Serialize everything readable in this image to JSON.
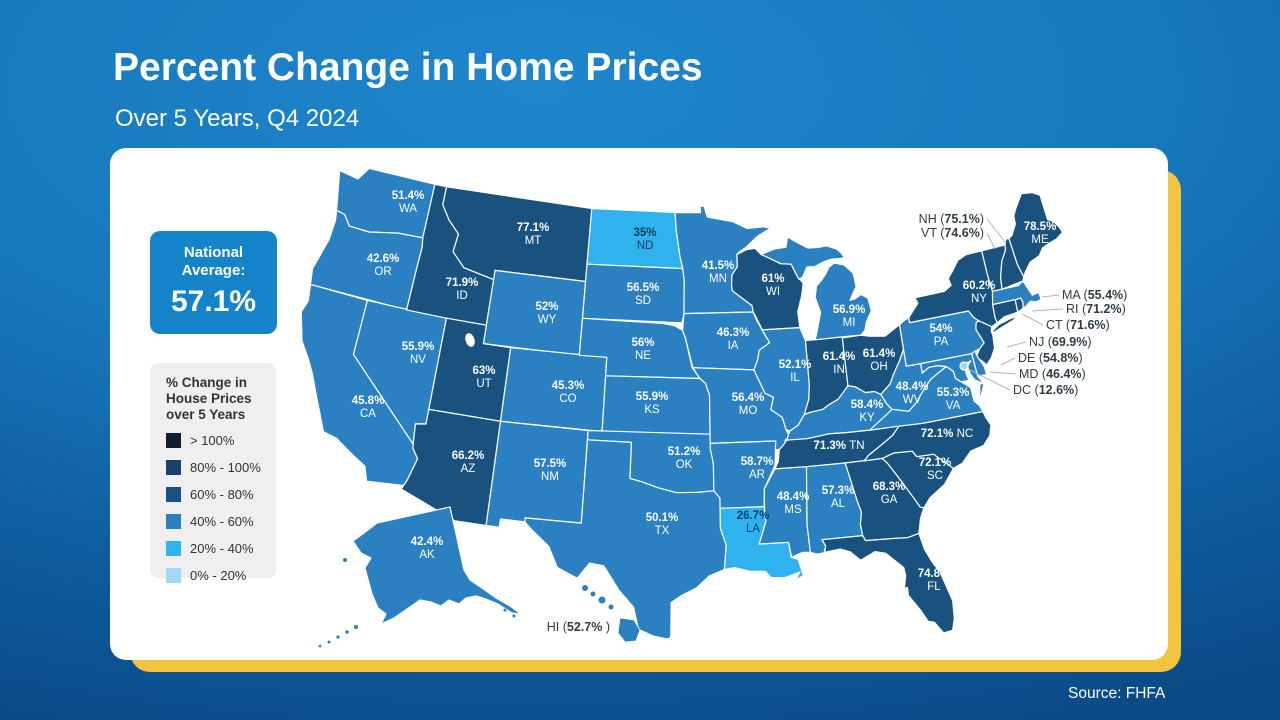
{
  "slide": {
    "title": "Percent Change in Home Prices",
    "subtitle": "Over 5 Years, Q4 2024",
    "source": "Source: FHFA"
  },
  "colors": {
    "background_top": "#1e86cd",
    "background_bottom": "#0a4a85",
    "card": "#ffffff",
    "accent_yellow": "#f0c43c",
    "national_box": "#1583ca",
    "callout_text": "#333c45",
    "dark_label": "#0e3a5c",
    "leader_line": "#b0b5ba",
    "map_border": "#ffffff"
  },
  "national_average": {
    "label_line1": "National",
    "label_line2": "Average:",
    "value": "57.1%"
  },
  "legend": {
    "title": "% Change in House Prices over 5 Years"
  },
  "chart_data": {
    "type": "choropleth",
    "region": "United States",
    "metric": "Percent change in home prices over 5 years",
    "period": "Q4 2024",
    "national_average": 57.1,
    "source": "FHFA",
    "bins": [
      {
        "label": "> 100%",
        "min": 100,
        "color": "#0e2030"
      },
      {
        "label": "80% - 100%",
        "min": 80,
        "color": "#15416a"
      },
      {
        "label": "60% - 80%",
        "min": 60,
        "color": "#19527f"
      },
      {
        "label": "40% - 60%",
        "min": 40,
        "color": "#2b80c1"
      },
      {
        "label": "20% - 40%",
        "min": 20,
        "color": "#2fb3ef"
      },
      {
        "label": "0% - 20%",
        "min": 0,
        "color": "#9ed9f5"
      }
    ],
    "states": [
      {
        "abbr": "WA",
        "label": "51.4%",
        "value": 51.4
      },
      {
        "abbr": "OR",
        "label": "42.6%",
        "value": 42.6
      },
      {
        "abbr": "CA",
        "label": "45.8%",
        "value": 45.8
      },
      {
        "abbr": "NV",
        "label": "55.9%",
        "value": 55.9
      },
      {
        "abbr": "ID",
        "label": "71.9%",
        "value": 71.9
      },
      {
        "abbr": "MT",
        "label": "77.1%",
        "value": 77.1
      },
      {
        "abbr": "WY",
        "label": "52%",
        "value": 52
      },
      {
        "abbr": "UT",
        "label": "63%",
        "value": 63
      },
      {
        "abbr": "CO",
        "label": "45.3%",
        "value": 45.3
      },
      {
        "abbr": "AZ",
        "label": "66.2%",
        "value": 66.2
      },
      {
        "abbr": "NM",
        "label": "57.5%",
        "value": 57.5
      },
      {
        "abbr": "ND",
        "label": "35%",
        "value": 35
      },
      {
        "abbr": "SD",
        "label": "56.5%",
        "value": 56.5
      },
      {
        "abbr": "NE",
        "label": "56%",
        "value": 56
      },
      {
        "abbr": "KS",
        "label": "55.9%",
        "value": 55.9
      },
      {
        "abbr": "OK",
        "label": "51.2%",
        "value": 51.2
      },
      {
        "abbr": "TX",
        "label": "50.1%",
        "value": 50.1
      },
      {
        "abbr": "MN",
        "label": "41.5%",
        "value": 41.5
      },
      {
        "abbr": "IA",
        "label": "46.3%",
        "value": 46.3
      },
      {
        "abbr": "MO",
        "label": "56.4%",
        "value": 56.4
      },
      {
        "abbr": "AR",
        "label": "58.7%",
        "value": 58.7
      },
      {
        "abbr": "LA",
        "label": "26.7%",
        "value": 26.7
      },
      {
        "abbr": "WI",
        "label": "61%",
        "value": 61
      },
      {
        "abbr": "IL",
        "label": "52.1%",
        "value": 52.1
      },
      {
        "abbr": "MS",
        "label": "48.4%",
        "value": 48.4
      },
      {
        "abbr": "MI",
        "label": "56.9%",
        "value": 56.9
      },
      {
        "abbr": "IN",
        "label": "61.4%",
        "value": 61.4
      },
      {
        "abbr": "OH",
        "label": "61.4%",
        "value": 61.4
      },
      {
        "abbr": "KY",
        "label": "58.4%",
        "value": 58.4
      },
      {
        "abbr": "TN",
        "label": "71.3%",
        "value": 71.3
      },
      {
        "abbr": "AL",
        "label": "57.3%",
        "value": 57.3
      },
      {
        "abbr": "GA",
        "label": "68.3%",
        "value": 68.3
      },
      {
        "abbr": "FL",
        "label": "74.8%",
        "value": 74.8
      },
      {
        "abbr": "SC",
        "label": "72.1%",
        "value": 72.1
      },
      {
        "abbr": "NC",
        "label": "72.1%",
        "value": 72.1
      },
      {
        "abbr": "VA",
        "label": "55.3%",
        "value": 55.3
      },
      {
        "abbr": "WV",
        "label": "48.4%",
        "value": 48.4
      },
      {
        "abbr": "PA",
        "label": "54%",
        "value": 54
      },
      {
        "abbr": "NY",
        "label": "60.2%",
        "value": 60.2
      },
      {
        "abbr": "ME",
        "label": "78.5%",
        "value": 78.5
      },
      {
        "abbr": "NH",
        "label": "75.1%",
        "value": 75.1
      },
      {
        "abbr": "VT",
        "label": "74.6%",
        "value": 74.6
      },
      {
        "abbr": "MA",
        "label": "55.4%",
        "value": 55.4
      },
      {
        "abbr": "RI",
        "label": "71.2%",
        "value": 71.2
      },
      {
        "abbr": "CT",
        "label": "71.6%",
        "value": 71.6
      },
      {
        "abbr": "NJ",
        "label": "69.9%",
        "value": 69.9
      },
      {
        "abbr": "DE",
        "label": "54.8%",
        "value": 54.8
      },
      {
        "abbr": "MD",
        "label": "46.4%",
        "value": 46.4
      },
      {
        "abbr": "DC",
        "label": "12.6%",
        "value": 12.6
      },
      {
        "abbr": "AK",
        "label": "42.4%",
        "value": 42.4
      },
      {
        "abbr": "HI",
        "label": "52.7%",
        "value": 52.7
      }
    ]
  }
}
